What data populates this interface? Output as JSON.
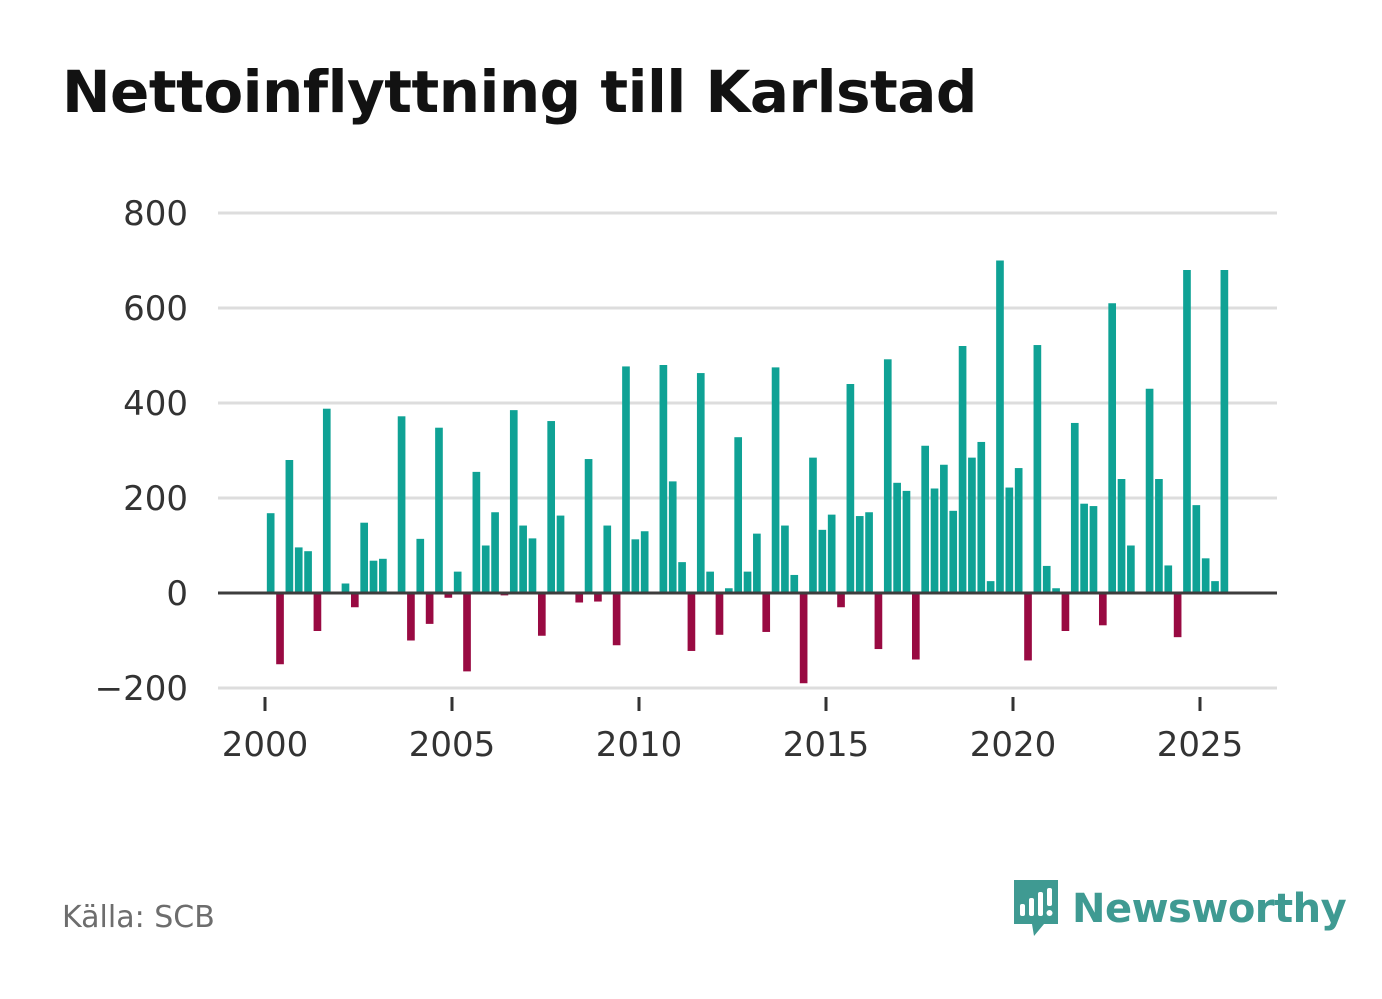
{
  "chart_data": {
    "type": "bar",
    "title": "Nettoinflyttning till Karlstad",
    "xlabel": "",
    "ylabel": "",
    "ylim": [
      -200,
      800
    ],
    "yticks": [
      -200,
      0,
      200,
      400,
      600,
      800
    ],
    "ytick_labels": [
      "−200",
      "0",
      "200",
      "400",
      "600",
      "800"
    ],
    "xlim": [
      2000,
      2026
    ],
    "xticks": [
      2000,
      2005,
      2010,
      2015,
      2020,
      2025
    ],
    "xtick_labels": [
      "2000",
      "2005",
      "2010",
      "2015",
      "2020",
      "2025"
    ],
    "grid": true,
    "positive_color": "#0fa295",
    "negative_color": "#990a42",
    "x_start": 2000,
    "months_per_bar": 3,
    "values": [
      168,
      -150,
      280,
      96,
      88,
      -80,
      388,
      0,
      20,
      -30,
      148,
      68,
      72,
      0,
      372,
      -100,
      114,
      -65,
      348,
      -10,
      45,
      -165,
      255,
      100,
      170,
      -5,
      385,
      142,
      115,
      -90,
      362,
      163,
      0,
      -20,
      282,
      -18,
      142,
      -110,
      477,
      113,
      130,
      0,
      480,
      235,
      65,
      -122,
      463,
      45,
      -88,
      10,
      328,
      45,
      125,
      -82,
      475,
      142,
      38,
      -190,
      285,
      133,
      165,
      -30,
      440,
      162,
      170,
      -118,
      492,
      232,
      215,
      -140,
      310,
      220,
      270,
      173,
      520,
      285,
      318,
      25,
      700,
      222,
      263,
      -142,
      522,
      57,
      10,
      -80,
      358,
      188,
      183,
      -68,
      610,
      240,
      100,
      0,
      430,
      240,
      58,
      -93,
      680,
      185,
      73,
      25,
      680
    ]
  },
  "source": "Källa: SCB",
  "brand": "Newsworthy"
}
